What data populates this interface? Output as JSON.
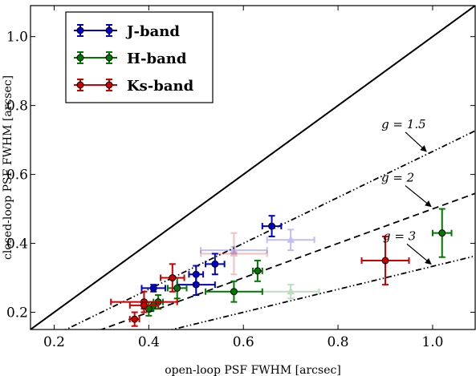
{
  "chart_data": {
    "type": "scatter",
    "title": "",
    "xlabel": "open-loop PSF FWHM [arcsec]",
    "ylabel": "closed-loop PSF FWHM [arcsec]",
    "xlim": [
      0.15,
      1.09
    ],
    "ylim": [
      0.15,
      1.09
    ],
    "x_ticks": [
      0.2,
      0.4,
      0.6,
      0.8,
      1.0
    ],
    "y_ticks": [
      0.2,
      0.4,
      0.6,
      0.8,
      1.0
    ],
    "x_tick_labels": [
      "0.2",
      "0.4",
      "0.6",
      "0.8",
      "1.0"
    ],
    "y_tick_labels": [
      "0.2",
      "0.4",
      "0.6",
      "0.8",
      "1.0"
    ],
    "grid": false,
    "legend_position": "top-left",
    "reference_lines": [
      {
        "g": 1.0,
        "style": "solid",
        "label": ""
      },
      {
        "g": 1.5,
        "style": "dashdotdot",
        "label": "g = 1.5"
      },
      {
        "g": 2.0,
        "style": "dashed",
        "label": "g = 2"
      },
      {
        "g": 3.0,
        "style": "dashdotdot",
        "label": "g = 3"
      }
    ],
    "series": [
      {
        "name": "J-band",
        "color": "#0000cc",
        "points": [
          {
            "x": 0.66,
            "y": 0.45,
            "xerr": 0.02,
            "yerr": 0.03
          },
          {
            "x": 0.54,
            "y": 0.34,
            "xerr": 0.02,
            "yerr": 0.03
          },
          {
            "x": 0.5,
            "y": 0.31,
            "xerr": 0.015,
            "yerr": 0.025
          },
          {
            "x": 0.5,
            "y": 0.28,
            "xerr": 0.04,
            "yerr": 0.03
          },
          {
            "x": 0.41,
            "y": 0.27,
            "xerr": 0.025,
            "yerr": 0.01
          }
        ],
        "faded_points": [
          {
            "x": 0.7,
            "y": 0.41,
            "xerr": 0.05,
            "yerr": 0.03
          },
          {
            "x": 0.58,
            "y": 0.38,
            "xerr": 0.07,
            "yerr": 0.01
          }
        ]
      },
      {
        "name": "H-band",
        "color": "#007700",
        "points": [
          {
            "x": 1.02,
            "y": 0.43,
            "xerr": 0.02,
            "yerr": 0.07
          },
          {
            "x": 0.63,
            "y": 0.32,
            "xerr": 0.01,
            "yerr": 0.03
          },
          {
            "x": 0.58,
            "y": 0.26,
            "xerr": 0.06,
            "yerr": 0.03
          },
          {
            "x": 0.46,
            "y": 0.27,
            "xerr": 0.02,
            "yerr": 0.03
          },
          {
            "x": 0.42,
            "y": 0.23,
            "xerr": 0.01,
            "yerr": 0.02
          },
          {
            "x": 0.41,
            "y": 0.22,
            "xerr": 0.01,
            "yerr": 0.01
          },
          {
            "x": 0.4,
            "y": 0.21,
            "xerr": 0.01,
            "yerr": 0.02
          }
        ],
        "faded_points": [
          {
            "x": 0.7,
            "y": 0.26,
            "xerr": 0.06,
            "yerr": 0.02
          }
        ]
      },
      {
        "name": "Ks-band",
        "color": "#cc0000",
        "points": [
          {
            "x": 0.9,
            "y": 0.35,
            "xerr": 0.05,
            "yerr": 0.07
          },
          {
            "x": 0.45,
            "y": 0.3,
            "xerr": 0.025,
            "yerr": 0.04
          },
          {
            "x": 0.39,
            "y": 0.23,
            "xerr": 0.07,
            "yerr": 0.03
          },
          {
            "x": 0.39,
            "y": 0.22,
            "xerr": 0.03,
            "yerr": 0.01
          },
          {
            "x": 0.37,
            "y": 0.18,
            "xerr": 0.01,
            "yerr": 0.02
          }
        ],
        "faded_points": [
          {
            "x": 0.58,
            "y": 0.37,
            "xerr": 0.07,
            "yerr": 0.06
          }
        ]
      }
    ],
    "annotations": [
      {
        "text": "g = 1.5",
        "arrow_to": [
          0.99,
          0.66
        ]
      },
      {
        "text": "g = 2",
        "arrow_to": [
          1.0,
          0.5
        ]
      },
      {
        "text": "g = 3",
        "arrow_to": [
          1.0,
          0.333
        ]
      }
    ]
  }
}
